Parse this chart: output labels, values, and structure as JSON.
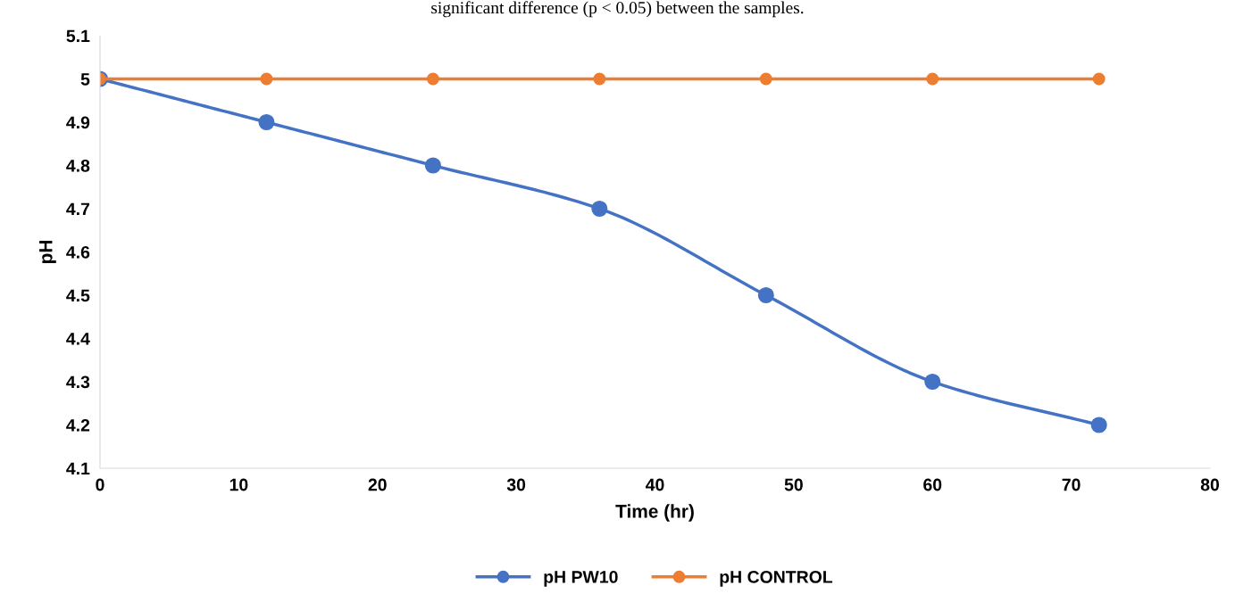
{
  "chart_data": {
    "type": "line",
    "xlabel": "Time (hr)",
    "ylabel": "pH",
    "annotations": [
      "significant difference (p < 0.05) between the samples."
    ],
    "x": [
      0,
      12,
      24,
      36,
      48,
      60,
      72
    ],
    "series": [
      {
        "name": "pH PW10",
        "color": "#4472c4",
        "values": [
          5.0,
          4.9,
          4.8,
          4.7,
          4.5,
          4.3,
          4.2
        ]
      },
      {
        "name": "pH CONTROL",
        "color": "#ed7d31",
        "values": [
          5.0,
          5.0,
          5.0,
          5.0,
          5.0,
          5.0,
          5.0
        ]
      }
    ],
    "xlim": [
      0,
      80
    ],
    "xticks": [
      0,
      10,
      20,
      30,
      40,
      50,
      60,
      70,
      80
    ],
    "ylim": [
      4.1,
      5.1
    ],
    "yticks": [
      4.1,
      4.2,
      4.3,
      4.4,
      4.5,
      4.6,
      4.7,
      4.8,
      4.9,
      5,
      5.1
    ],
    "grid": false,
    "legend": "bottom",
    "marker": "circle",
    "line_style": "solid"
  }
}
